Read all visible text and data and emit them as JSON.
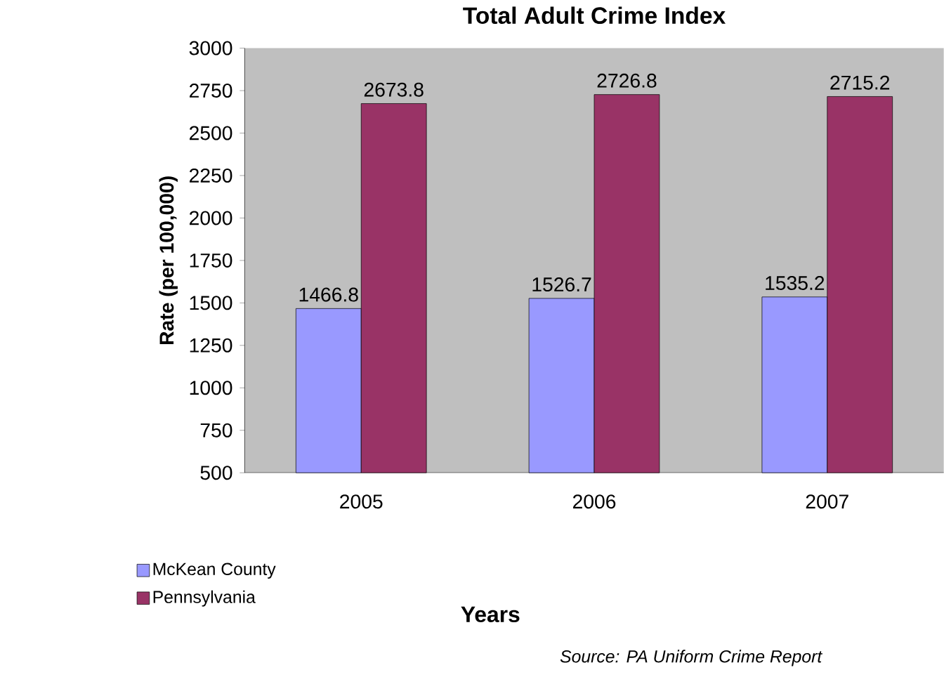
{
  "chart_data": {
    "type": "bar",
    "title": "Total Adult Crime Index",
    "xlabel": "Years",
    "ylabel": "Rate (per 100,000)",
    "categories": [
      "2005",
      "2006",
      "2007"
    ],
    "series": [
      {
        "name": "McKean County",
        "color": "#9999ff",
        "values": [
          1466.8,
          1526.7,
          1535.2
        ]
      },
      {
        "name": "Pennsylvania",
        "color": "#993366",
        "values": [
          2673.8,
          2726.8,
          2715.2
        ]
      }
    ],
    "ylim": [
      500,
      3000
    ],
    "yticks": [
      500,
      750,
      1000,
      1250,
      1500,
      1750,
      2000,
      2250,
      2500,
      2750,
      3000
    ],
    "data_labels": true,
    "legend": "bottom left",
    "grid": false,
    "annotations": [
      "*Source: PA Uniform Crime Report*"
    ]
  }
}
